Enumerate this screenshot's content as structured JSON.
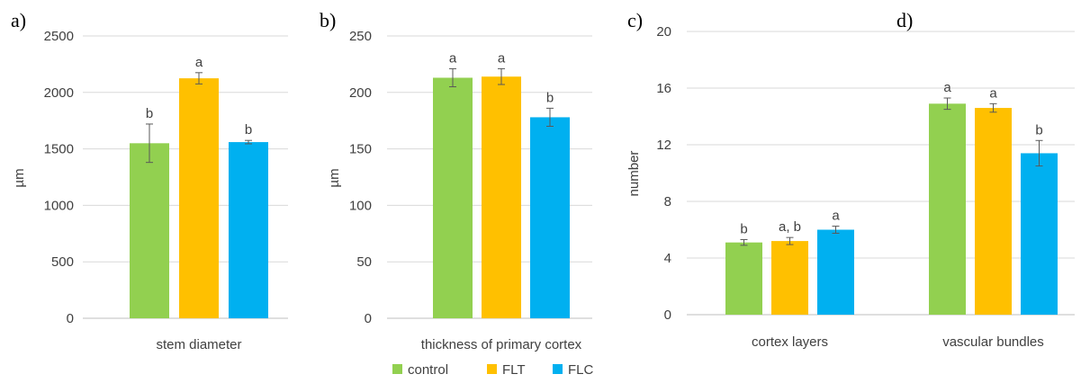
{
  "colors": {
    "control": "#92d050",
    "FLT": "#ffc000",
    "FLC": "#00b0f0"
  },
  "legend": [
    {
      "name": "control",
      "color": "#92d050"
    },
    {
      "name": "FLT",
      "color": "#ffc000"
    },
    {
      "name": "FLC",
      "color": "#00b0f0"
    }
  ],
  "chart_data": [
    {
      "panel": "a)",
      "type": "bar",
      "ylabel": "µm",
      "ylim": [
        0,
        2500
      ],
      "yticks": [
        "0",
        "500",
        "1000",
        "1500",
        "2000",
        "2500"
      ],
      "grid": true,
      "categories": [
        "stem diameter"
      ],
      "series": [
        {
          "name": "control",
          "values": [
            1550
          ],
          "error": [
            170
          ],
          "letters": [
            "b"
          ]
        },
        {
          "name": "FLT",
          "values": [
            2125
          ],
          "error": [
            50
          ],
          "letters": [
            "a"
          ]
        },
        {
          "name": "FLC",
          "values": [
            1560
          ],
          "error": [
            15
          ],
          "letters": [
            "b"
          ]
        }
      ]
    },
    {
      "panel": "b)",
      "type": "bar",
      "ylabel": "µm",
      "ylim": [
        0,
        250
      ],
      "yticks": [
        "0",
        "50",
        "100",
        "150",
        "200",
        "250"
      ],
      "grid": true,
      "categories": [
        "thickness of primary cortex"
      ],
      "series": [
        {
          "name": "control",
          "values": [
            213
          ],
          "error": [
            8
          ],
          "letters": [
            "a"
          ]
        },
        {
          "name": "FLT",
          "values": [
            214
          ],
          "error": [
            7
          ],
          "letters": [
            "a"
          ]
        },
        {
          "name": "FLC",
          "values": [
            178
          ],
          "error": [
            8
          ],
          "letters": [
            "b"
          ]
        }
      ]
    },
    {
      "panel": "c)",
      "panel2": "d)",
      "type": "bar",
      "ylabel": "number",
      "ylim": [
        0,
        20
      ],
      "yticks": [
        "0",
        "4",
        "8",
        "12",
        "16",
        "20"
      ],
      "grid": true,
      "categories": [
        "cortex layers",
        "vascular bundles"
      ],
      "series": [
        {
          "name": "control",
          "values": [
            5.1,
            14.9
          ],
          "error": [
            0.2,
            0.4
          ],
          "letters": [
            "b",
            "a"
          ]
        },
        {
          "name": "FLT",
          "values": [
            5.2,
            14.6
          ],
          "error": [
            0.25,
            0.3
          ],
          "letters": [
            "a, b",
            "a"
          ]
        },
        {
          "name": "FLC",
          "values": [
            6.0,
            11.4
          ],
          "error": [
            0.25,
            0.9
          ],
          "letters": [
            "a",
            "b"
          ]
        }
      ]
    }
  ]
}
